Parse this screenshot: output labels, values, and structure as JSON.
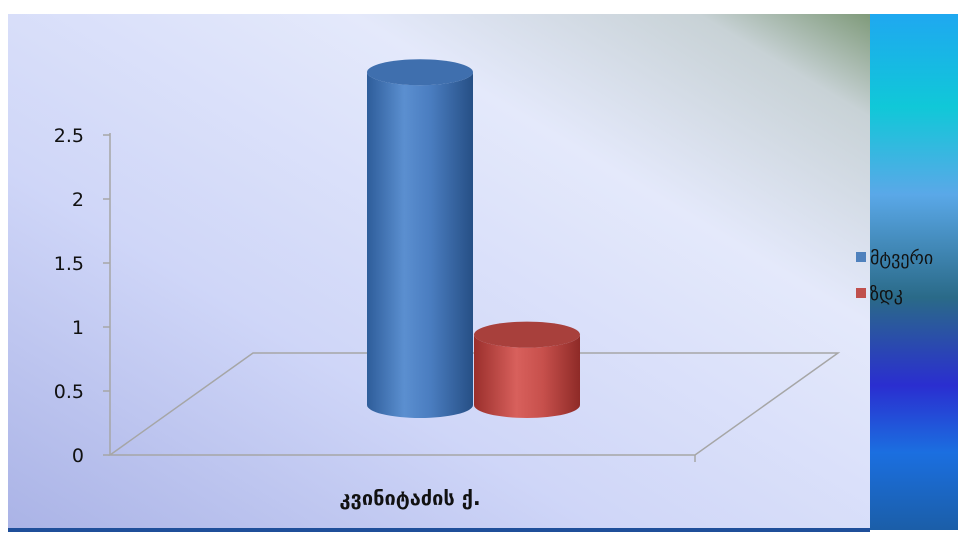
{
  "chart_data": {
    "type": "bar",
    "style": "3d-cylinder",
    "categories": [
      "კვინიტაძის ქ."
    ],
    "series": [
      {
        "name": "მტვერი",
        "values": [
          2.6
        ],
        "color": "#4F81BD"
      },
      {
        "name": "ზდკ",
        "values": [
          0.55
        ],
        "color": "#C0504D"
      }
    ],
    "ylim": [
      0,
      2.5
    ],
    "yticks": [
      "0",
      "0.5",
      "1",
      "1.5",
      "2",
      "2.5"
    ],
    "grid": false,
    "legend_position": "right"
  }
}
